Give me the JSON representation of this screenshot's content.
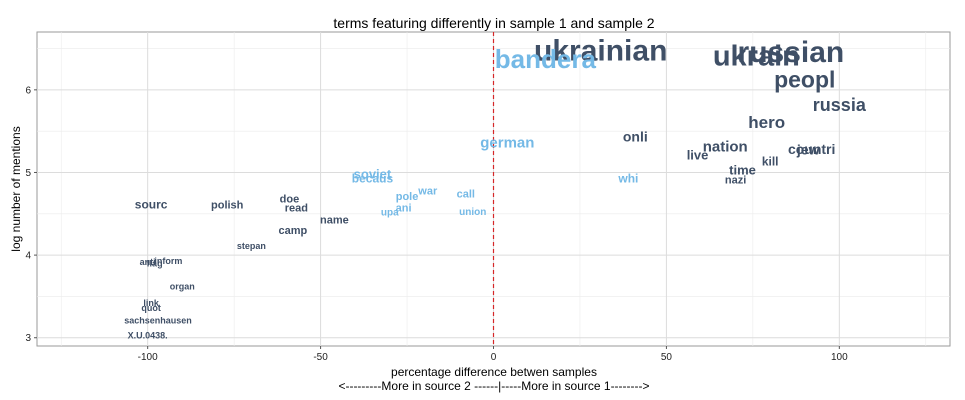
{
  "chart_data": {
    "type": "scatter",
    "title": "terms featuring differently in sample 1 and sample 2",
    "xlabel": "percentage difference betwen samples",
    "xlabel_note": "<---------More in source 2 ------|-----More in source 1-------->",
    "ylabel": "log number of mentions",
    "xlim": [
      -132,
      132
    ],
    "ylim": [
      2.9,
      6.7
    ],
    "x_ticks": [
      -100,
      -50,
      0,
      50,
      100
    ],
    "y_ticks": [
      3,
      4,
      5,
      6
    ],
    "grid": true,
    "reference_line": {
      "x": 0,
      "color": "#d62728",
      "style": "dashed"
    },
    "colors": {
      "source1": "#3f4f66",
      "source2": "#74b9e6",
      "panel": "#ffffff",
      "grid": "#ebebeb",
      "border": "#9a9a9a"
    },
    "points": [
      {
        "label": "ukrainian",
        "x": 31,
        "y": 6.45,
        "group": "source1",
        "size": 30
      },
      {
        "label": "russian",
        "x": 86,
        "y": 6.43,
        "group": "source1",
        "size": 30
      },
      {
        "label": "ukrain",
        "x": 76,
        "y": 6.39,
        "group": "source1",
        "size": 29
      },
      {
        "label": "bandera",
        "x": 15,
        "y": 6.35,
        "group": "source2",
        "size": 26
      },
      {
        "label": "peopl",
        "x": 90,
        "y": 6.1,
        "group": "source1",
        "size": 23
      },
      {
        "label": "russia",
        "x": 100,
        "y": 5.8,
        "group": "source1",
        "size": 18
      },
      {
        "label": "hero",
        "x": 79,
        "y": 5.59,
        "group": "source1",
        "size": 17
      },
      {
        "label": "onli",
        "x": 41,
        "y": 5.42,
        "group": "source1",
        "size": 14
      },
      {
        "label": "german",
        "x": 4,
        "y": 5.35,
        "group": "source2",
        "size": 15
      },
      {
        "label": "nation",
        "x": 67,
        "y": 5.3,
        "group": "source1",
        "size": 15
      },
      {
        "label": "countri",
        "x": 92,
        "y": 5.27,
        "group": "source1",
        "size": 14
      },
      {
        "label": "jew",
        "x": 91,
        "y": 5.26,
        "group": "source1",
        "size": 14
      },
      {
        "label": "live",
        "x": 59,
        "y": 5.2,
        "group": "source1",
        "size": 13
      },
      {
        "label": "kill",
        "x": 80,
        "y": 5.12,
        "group": "source1",
        "size": 12
      },
      {
        "label": "time",
        "x": 72,
        "y": 5.02,
        "group": "source1",
        "size": 13
      },
      {
        "label": "soviet",
        "x": -35,
        "y": 4.97,
        "group": "source2",
        "size": 13
      },
      {
        "label": "becaus",
        "x": -35,
        "y": 4.92,
        "group": "source2",
        "size": 12
      },
      {
        "label": "whi",
        "x": 39,
        "y": 4.92,
        "group": "source2",
        "size": 12
      },
      {
        "label": "nazi",
        "x": 70,
        "y": 4.9,
        "group": "source1",
        "size": 11
      },
      {
        "label": "war",
        "x": -19,
        "y": 4.77,
        "group": "source2",
        "size": 11
      },
      {
        "label": "call",
        "x": -8,
        "y": 4.73,
        "group": "source2",
        "size": 11
      },
      {
        "label": "pole",
        "x": -25,
        "y": 4.7,
        "group": "source2",
        "size": 11
      },
      {
        "label": "doe",
        "x": -59,
        "y": 4.67,
        "group": "source1",
        "size": 11
      },
      {
        "label": "sourc",
        "x": -99,
        "y": 4.6,
        "group": "source1",
        "size": 12
      },
      {
        "label": "polish",
        "x": -77,
        "y": 4.6,
        "group": "source1",
        "size": 11
      },
      {
        "label": "read",
        "x": -57,
        "y": 4.56,
        "group": "source1",
        "size": 11
      },
      {
        "label": "ani",
        "x": -26,
        "y": 4.56,
        "group": "source2",
        "size": 11
      },
      {
        "label": "union",
        "x": -6,
        "y": 4.52,
        "group": "source2",
        "size": 10
      },
      {
        "label": "upa",
        "x": -30,
        "y": 4.51,
        "group": "source2",
        "size": 10
      },
      {
        "label": "name",
        "x": -46,
        "y": 4.42,
        "group": "source1",
        "size": 11
      },
      {
        "label": "camp",
        "x": -58,
        "y": 4.29,
        "group": "source1",
        "size": 11
      },
      {
        "label": "stepan",
        "x": -70,
        "y": 4.1,
        "group": "source1",
        "size": 9
      },
      {
        "label": "anti",
        "x": -100,
        "y": 3.91,
        "group": "source1",
        "size": 9
      },
      {
        "label": "inform",
        "x": -94,
        "y": 3.92,
        "group": "source1",
        "size": 9
      },
      {
        "label": "flag",
        "x": -98,
        "y": 3.89,
        "group": "source1",
        "size": 9
      },
      {
        "label": "organ",
        "x": -90,
        "y": 3.61,
        "group": "source1",
        "size": 9
      },
      {
        "label": "link",
        "x": -99,
        "y": 3.41,
        "group": "source1",
        "size": 9
      },
      {
        "label": "quot",
        "x": -99,
        "y": 3.35,
        "group": "source1",
        "size": 9
      },
      {
        "label": "sachsenhausen",
        "x": -97,
        "y": 3.2,
        "group": "source1",
        "size": 9
      },
      {
        "label": "X.U.0438.",
        "x": -100,
        "y": 3.02,
        "group": "source1",
        "size": 9
      }
    ]
  }
}
